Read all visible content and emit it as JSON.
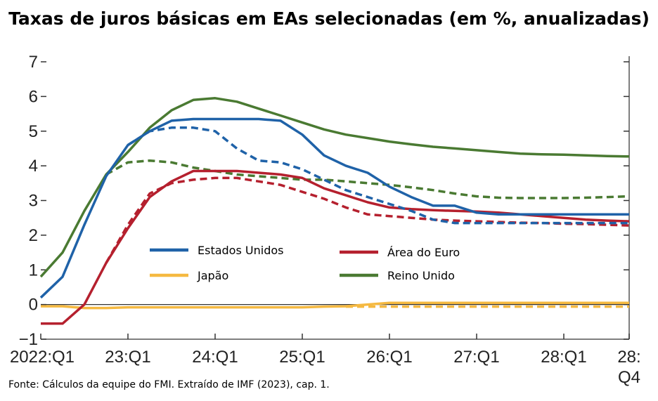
{
  "source_note": "Fonte: Cálculos da equipe do FMI. Extraído de IMF (2023), cap. 1.",
  "chart_data": {
    "type": "line",
    "title": "Taxas de juros básicas em EAs selecionadas (em %, anualizadas)",
    "xlabel": "",
    "ylabel": "",
    "ylim": [
      -1,
      7
    ],
    "xlim": [
      0,
      27
    ],
    "yticks": [
      -1,
      0,
      1,
      2,
      3,
      4,
      5,
      6,
      7
    ],
    "ytick_labels": [
      "−1",
      "0",
      "1",
      "2",
      "3",
      "4",
      "5",
      "6",
      "7"
    ],
    "xticks": [
      {
        "x": 0,
        "label": "2022:Q1"
      },
      {
        "x": 4,
        "label": "23:Q1"
      },
      {
        "x": 8,
        "label": "24:Q1"
      },
      {
        "x": 12,
        "label": "25:Q1"
      },
      {
        "x": 16,
        "label": "26:Q1"
      },
      {
        "x": 20,
        "label": "27:Q1"
      },
      {
        "x": 24,
        "label": "28:Q1"
      },
      {
        "x": 27,
        "label": "28:",
        "label2": "Q4"
      }
    ],
    "grid": false,
    "legend_position": "center-left",
    "series": [
      {
        "name": "Estados Unidos",
        "color": "#1f62a8",
        "style": "solid",
        "legend": true,
        "x": [
          0,
          1,
          2,
          3,
          4,
          5,
          6,
          7,
          8,
          9,
          10,
          11,
          12,
          13,
          14,
          15,
          16,
          17,
          18,
          19,
          20,
          21,
          22,
          23,
          24,
          25,
          26,
          27
        ],
        "y": [
          0.2,
          0.8,
          2.3,
          3.7,
          4.6,
          5.0,
          5.3,
          5.35,
          5.35,
          5.35,
          5.35,
          5.3,
          4.9,
          4.3,
          4.0,
          3.8,
          3.4,
          3.1,
          2.85,
          2.85,
          2.65,
          2.6,
          2.6,
          2.6,
          2.6,
          2.6,
          2.6,
          2.6
        ]
      },
      {
        "name": "Estados Unidos (proj.)",
        "color": "#1f62a8",
        "style": "dashed",
        "legend": false,
        "x": [
          4,
          5,
          6,
          7,
          8,
          9,
          10,
          11,
          12,
          13,
          14,
          15,
          16,
          17,
          18,
          19,
          20,
          21,
          22,
          23,
          24,
          25,
          26,
          27
        ],
        "y": [
          4.6,
          5.0,
          5.1,
          5.1,
          5.0,
          4.5,
          4.15,
          4.1,
          3.9,
          3.6,
          3.3,
          3.1,
          2.9,
          2.7,
          2.45,
          2.35,
          2.35,
          2.35,
          2.35,
          2.35,
          2.35,
          2.35,
          2.35,
          2.35
        ]
      },
      {
        "name": "Japão",
        "color": "#f5b941",
        "style": "solid",
        "legend": true,
        "x": [
          0,
          1,
          2,
          3,
          4,
          5,
          6,
          7,
          8,
          9,
          10,
          11,
          12,
          13,
          14,
          15,
          16,
          17,
          18,
          19,
          20,
          21,
          22,
          23,
          24,
          25,
          26,
          27
        ],
        "y": [
          -0.05,
          -0.05,
          -0.1,
          -0.1,
          -0.08,
          -0.08,
          -0.08,
          -0.08,
          -0.08,
          -0.08,
          -0.08,
          -0.08,
          -0.08,
          -0.06,
          -0.05,
          0.0,
          0.05,
          0.05,
          0.05,
          0.05,
          0.05,
          0.05,
          0.05,
          0.05,
          0.05,
          0.05,
          0.05,
          0.05
        ]
      },
      {
        "name": "Japão (proj.)",
        "color": "#f5b941",
        "style": "dashed",
        "legend": false,
        "x": [
          14,
          15,
          16,
          17,
          18,
          19,
          20,
          21,
          22,
          23,
          24,
          25,
          26,
          27
        ],
        "y": [
          -0.06,
          -0.06,
          -0.06,
          -0.06,
          -0.06,
          -0.06,
          -0.06,
          -0.06,
          -0.06,
          -0.06,
          -0.06,
          -0.06,
          -0.06,
          -0.06
        ]
      },
      {
        "name": "Área do Euro",
        "color": "#b5202e",
        "style": "solid",
        "legend": true,
        "x": [
          0,
          1,
          2,
          3,
          4,
          5,
          6,
          7,
          8,
          9,
          10,
          11,
          12,
          13,
          14,
          15,
          16,
          17,
          18,
          19,
          20,
          21,
          22,
          23,
          24,
          25,
          26,
          27
        ],
        "y": [
          -0.55,
          -0.55,
          0.0,
          1.2,
          2.2,
          3.1,
          3.55,
          3.85,
          3.85,
          3.85,
          3.8,
          3.75,
          3.65,
          3.35,
          3.15,
          2.95,
          2.8,
          2.75,
          2.72,
          2.7,
          2.68,
          2.65,
          2.6,
          2.55,
          2.5,
          2.45,
          2.42,
          2.4
        ]
      },
      {
        "name": "Área do Euro (proj.)",
        "color": "#b5202e",
        "style": "dashed",
        "legend": false,
        "x": [
          3,
          4,
          5,
          6,
          7,
          8,
          9,
          10,
          11,
          12,
          13,
          14,
          15,
          16,
          17,
          18,
          19,
          20,
          21,
          22,
          23,
          24,
          25,
          26,
          27
        ],
        "y": [
          1.2,
          2.3,
          3.2,
          3.5,
          3.6,
          3.65,
          3.65,
          3.55,
          3.45,
          3.25,
          3.05,
          2.8,
          2.6,
          2.55,
          2.5,
          2.45,
          2.42,
          2.4,
          2.38,
          2.36,
          2.35,
          2.33,
          2.32,
          2.3,
          2.28
        ]
      },
      {
        "name": "Reino Unido",
        "color": "#4a7a32",
        "style": "solid",
        "legend": true,
        "x": [
          0,
          1,
          2,
          3,
          4,
          5,
          6,
          7,
          8,
          9,
          10,
          11,
          12,
          13,
          14,
          15,
          16,
          17,
          18,
          19,
          20,
          21,
          22,
          23,
          24,
          25,
          26,
          27
        ],
        "y": [
          0.8,
          1.5,
          2.7,
          3.75,
          4.4,
          5.1,
          5.6,
          5.9,
          5.95,
          5.85,
          5.65,
          5.45,
          5.25,
          5.05,
          4.9,
          4.8,
          4.7,
          4.62,
          4.55,
          4.5,
          4.45,
          4.4,
          4.35,
          4.33,
          4.32,
          4.3,
          4.28,
          4.27
        ]
      },
      {
        "name": "Reino Unido (proj.)",
        "color": "#4a7a32",
        "style": "dashed",
        "legend": false,
        "x": [
          3,
          4,
          5,
          6,
          7,
          8,
          9,
          10,
          11,
          12,
          13,
          14,
          15,
          16,
          17,
          18,
          19,
          20,
          21,
          22,
          23,
          24,
          25,
          26,
          27
        ],
        "y": [
          3.75,
          4.1,
          4.15,
          4.1,
          3.95,
          3.85,
          3.75,
          3.7,
          3.65,
          3.6,
          3.6,
          3.55,
          3.5,
          3.45,
          3.38,
          3.3,
          3.2,
          3.12,
          3.08,
          3.07,
          3.07,
          3.07,
          3.08,
          3.1,
          3.12
        ]
      }
    ],
    "legend_entries": [
      {
        "label": "Estados Unidos",
        "color": "#1f62a8"
      },
      {
        "label": "Japão",
        "color": "#f5b941"
      },
      {
        "label": "Área do Euro",
        "color": "#b5202e"
      },
      {
        "label": "Reino Unido",
        "color": "#4a7a32"
      }
    ]
  }
}
